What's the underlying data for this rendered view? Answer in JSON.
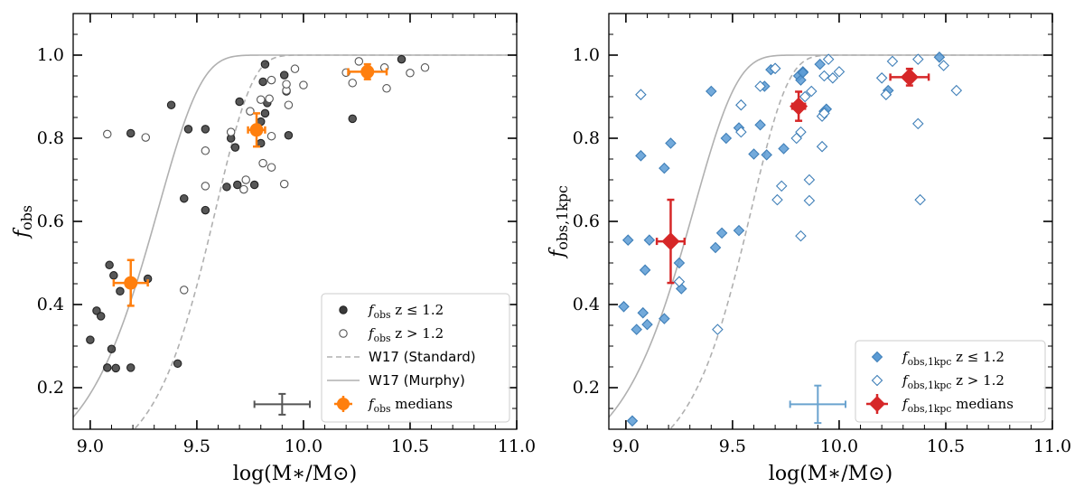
{
  "colors": {
    "closed_gray": "#3a3a3a",
    "open_gray": "#555555",
    "orange": "#ff7f0e",
    "blue_fill": "#5a9bd5",
    "blue_edge": "#3f7fb8",
    "red": "#d62728",
    "curve": "#b0b0b0",
    "err_gray": "#555555",
    "err_blue": "#6aa3cf"
  },
  "chart_data": [
    {
      "type": "scatter",
      "panel": "left",
      "xlabel": "log(M∗/M⊙)",
      "ylabel": "f_obs",
      "ylabel_main": "f",
      "ylabel_sub": "obs",
      "xlim": [
        8.92,
        11.0
      ],
      "ylim": [
        0.1,
        1.1
      ],
      "xticks": [
        9.0,
        9.5,
        10.0,
        10.5,
        11.0
      ],
      "xtick_labels": [
        "9.0",
        "9.5",
        "10.0",
        "10.5",
        "11.0"
      ],
      "yticks": [
        0.2,
        0.4,
        0.6,
        0.8,
        1.0
      ],
      "ytick_labels": [
        "0.2",
        "0.4",
        "0.6",
        "0.8",
        "1.0"
      ],
      "series": [
        {
          "name": "f_obs z ≤ 1.2",
          "marker": "circle-filled",
          "points": [
            [
              9.0,
              0.315
            ],
            [
              9.03,
              0.385
            ],
            [
              9.05,
              0.372
            ],
            [
              9.08,
              0.248
            ],
            [
              9.09,
              0.495
            ],
            [
              9.1,
              0.293
            ],
            [
              9.12,
              0.247
            ],
            [
              9.11,
              0.47
            ],
            [
              9.14,
              0.432
            ],
            [
              9.19,
              0.812
            ],
            [
              9.19,
              0.248
            ],
            [
              9.27,
              0.462
            ],
            [
              9.38,
              0.88
            ],
            [
              9.41,
              0.258
            ],
            [
              9.44,
              0.655
            ],
            [
              9.46,
              0.822
            ],
            [
              9.54,
              0.627
            ],
            [
              9.54,
              0.822
            ],
            [
              9.64,
              0.683
            ],
            [
              9.66,
              0.8
            ],
            [
              9.68,
              0.778
            ],
            [
              9.69,
              0.688
            ],
            [
              9.7,
              0.888
            ],
            [
              9.77,
              0.688
            ],
            [
              9.8,
              0.788
            ],
            [
              9.8,
              0.84
            ],
            [
              9.82,
              0.978
            ],
            [
              9.81,
              0.936
            ],
            [
              9.83,
              0.885
            ],
            [
              9.82,
              0.86
            ],
            [
              9.91,
              0.952
            ],
            [
              9.92,
              0.913
            ],
            [
              9.93,
              0.807
            ],
            [
              10.23,
              0.847
            ],
            [
              10.46,
              0.99
            ]
          ]
        },
        {
          "name": "f_obs z > 1.2",
          "marker": "circle-open",
          "points": [
            [
              9.08,
              0.81
            ],
            [
              9.26,
              0.802
            ],
            [
              9.44,
              0.435
            ],
            [
              9.54,
              0.685
            ],
            [
              9.54,
              0.77
            ],
            [
              9.66,
              0.815
            ],
            [
              9.72,
              0.677
            ],
            [
              9.73,
              0.7
            ],
            [
              9.75,
              0.865
            ],
            [
              9.8,
              0.893
            ],
            [
              9.81,
              0.74
            ],
            [
              9.84,
              0.895
            ],
            [
              9.85,
              0.73
            ],
            [
              9.85,
              0.805
            ],
            [
              9.85,
              0.94
            ],
            [
              9.91,
              0.69
            ],
            [
              9.92,
              0.915
            ],
            [
              9.92,
              0.93
            ],
            [
              9.93,
              0.88
            ],
            [
              9.96,
              0.967
            ],
            [
              10.0,
              0.928
            ],
            [
              10.2,
              0.958
            ],
            [
              10.23,
              0.933
            ],
            [
              10.26,
              0.985
            ],
            [
              10.38,
              0.97
            ],
            [
              10.39,
              0.92
            ],
            [
              10.5,
              0.957
            ],
            [
              10.57,
              0.97
            ]
          ]
        },
        {
          "name": "f_obs medians",
          "marker": "circle-large",
          "points": [
            {
              "x": 9.19,
              "y": 0.452,
              "xerr": 0.08,
              "yerr": 0.055
            },
            {
              "x": 9.78,
              "y": 0.82,
              "xerr": 0.04,
              "yerr": 0.04
            },
            {
              "x": 10.3,
              "y": 0.96,
              "xerr": 0.09,
              "yerr": 0.018
            }
          ]
        }
      ],
      "curves": [
        {
          "name": "W17 (Standard)",
          "style": "dashed",
          "alpha": 2.55,
          "beta": 9.59
        },
        {
          "name": "W17 (Murphy)",
          "style": "solid",
          "alpha": 2.15,
          "beta": 9.32
        }
      ],
      "typical_error": {
        "x": 9.9,
        "y": 0.16,
        "xerr": 0.13,
        "yerr": 0.025
      },
      "legend": {
        "position": "bottom-right",
        "entries": [
          {
            "main": "f",
            "sub": "obs",
            "rest": " z ≤ 1.2"
          },
          {
            "main": "f",
            "sub": "obs",
            "rest": " z > 1.2"
          },
          {
            "main": "W17 (Standard)",
            "sub": "",
            "rest": ""
          },
          {
            "main": "W17 (Murphy)",
            "sub": "",
            "rest": ""
          },
          {
            "main": "f",
            "sub": "obs",
            "rest": " medians"
          }
        ]
      }
    },
    {
      "type": "scatter",
      "panel": "right",
      "xlabel": "log(M∗/M⊙)",
      "ylabel": "f_obs,1kpc",
      "ylabel_main": "f",
      "ylabel_sub": "obs,1kpc",
      "xlim": [
        8.92,
        11.0
      ],
      "ylim": [
        0.1,
        1.1
      ],
      "xticks": [
        9.0,
        9.5,
        10.0,
        10.5,
        11.0
      ],
      "xtick_labels": [
        "9.0",
        "9.5",
        "10.0",
        "10.5",
        "11.0"
      ],
      "yticks": [
        0.2,
        0.4,
        0.6,
        0.8,
        1.0
      ],
      "ytick_labels": [
        "0.2",
        "0.4",
        "0.6",
        "0.8",
        "1.0"
      ],
      "series": [
        {
          "name": "f_obs,1kpc z ≤ 1.2",
          "marker": "diamond-filled",
          "points": [
            [
              8.99,
              0.395
            ],
            [
              9.01,
              0.555
            ],
            [
              9.03,
              0.12
            ],
            [
              9.05,
              0.34
            ],
            [
              9.07,
              0.758
            ],
            [
              9.08,
              0.38
            ],
            [
              9.09,
              0.483
            ],
            [
              9.1,
              0.352
            ],
            [
              9.11,
              0.555
            ],
            [
              9.18,
              0.728
            ],
            [
              9.18,
              0.366
            ],
            [
              9.21,
              0.788
            ],
            [
              9.25,
              0.5
            ],
            [
              9.26,
              0.438
            ],
            [
              9.4,
              0.913
            ],
            [
              9.42,
              0.537
            ],
            [
              9.45,
              0.572
            ],
            [
              9.47,
              0.8
            ],
            [
              9.53,
              0.578
            ],
            [
              9.53,
              0.825
            ],
            [
              9.6,
              0.762
            ],
            [
              9.63,
              0.832
            ],
            [
              9.65,
              0.925
            ],
            [
              9.66,
              0.76
            ],
            [
              9.68,
              0.965
            ],
            [
              9.7,
              0.968
            ],
            [
              9.74,
              0.775
            ],
            [
              9.81,
              0.95
            ],
            [
              9.82,
              0.94
            ],
            [
              9.83,
              0.96
            ],
            [
              9.83,
              0.958
            ],
            [
              9.91,
              0.978
            ],
            [
              9.93,
              0.865
            ],
            [
              9.94,
              0.87
            ],
            [
              10.23,
              0.915
            ],
            [
              10.47,
              0.995
            ]
          ]
        },
        {
          "name": "f_obs,1kpc z > 1.2",
          "marker": "diamond-open",
          "points": [
            [
              9.07,
              0.905
            ],
            [
              9.25,
              0.455
            ],
            [
              9.43,
              0.34
            ],
            [
              9.54,
              0.815
            ],
            [
              9.54,
              0.88
            ],
            [
              9.63,
              0.925
            ],
            [
              9.7,
              0.968
            ],
            [
              9.71,
              0.652
            ],
            [
              9.73,
              0.685
            ],
            [
              9.8,
              0.8
            ],
            [
              9.82,
              0.565
            ],
            [
              9.82,
              0.815
            ],
            [
              9.84,
              0.9
            ],
            [
              9.86,
              0.7
            ],
            [
              9.86,
              0.65
            ],
            [
              9.87,
              0.913
            ],
            [
              9.92,
              0.78
            ],
            [
              9.92,
              0.853
            ],
            [
              9.93,
              0.95
            ],
            [
              9.93,
              0.86
            ],
            [
              9.95,
              0.99
            ],
            [
              9.97,
              0.945
            ],
            [
              10.0,
              0.96
            ],
            [
              10.2,
              0.945
            ],
            [
              10.22,
              0.905
            ],
            [
              10.25,
              0.985
            ],
            [
              10.37,
              0.835
            ],
            [
              10.37,
              0.99
            ],
            [
              10.38,
              0.652
            ],
            [
              10.49,
              0.975
            ],
            [
              10.55,
              0.915
            ]
          ]
        },
        {
          "name": "f_obs,1kpc medians",
          "marker": "diamond-large",
          "points": [
            {
              "x": 9.21,
              "y": 0.552,
              "xerr": 0.065,
              "yerr": 0.1
            },
            {
              "x": 9.81,
              "y": 0.877,
              "xerr": 0.03,
              "yerr": 0.035
            },
            {
              "x": 10.33,
              "y": 0.947,
              "xerr": 0.09,
              "yerr": 0.02
            }
          ]
        }
      ],
      "curves": [
        {
          "name": "W17 (Standard)",
          "style": "dashed",
          "alpha": 2.55,
          "beta": 9.59
        },
        {
          "name": "W17 (Murphy)",
          "style": "solid",
          "alpha": 2.15,
          "beta": 9.32
        }
      ],
      "typical_error": {
        "x": 9.9,
        "y": 0.16,
        "xerr": 0.13,
        "yerr": 0.045
      },
      "legend": {
        "position": "bottom-right",
        "entries": [
          {
            "main": "f",
            "sub": "obs,1kpc",
            "rest": " z ≤ 1.2"
          },
          {
            "main": "f",
            "sub": "obs,1kpc",
            "rest": " z > 1.2"
          },
          {
            "main": "f",
            "sub": "obs,1kpc",
            "rest": " medians"
          }
        ]
      }
    }
  ]
}
